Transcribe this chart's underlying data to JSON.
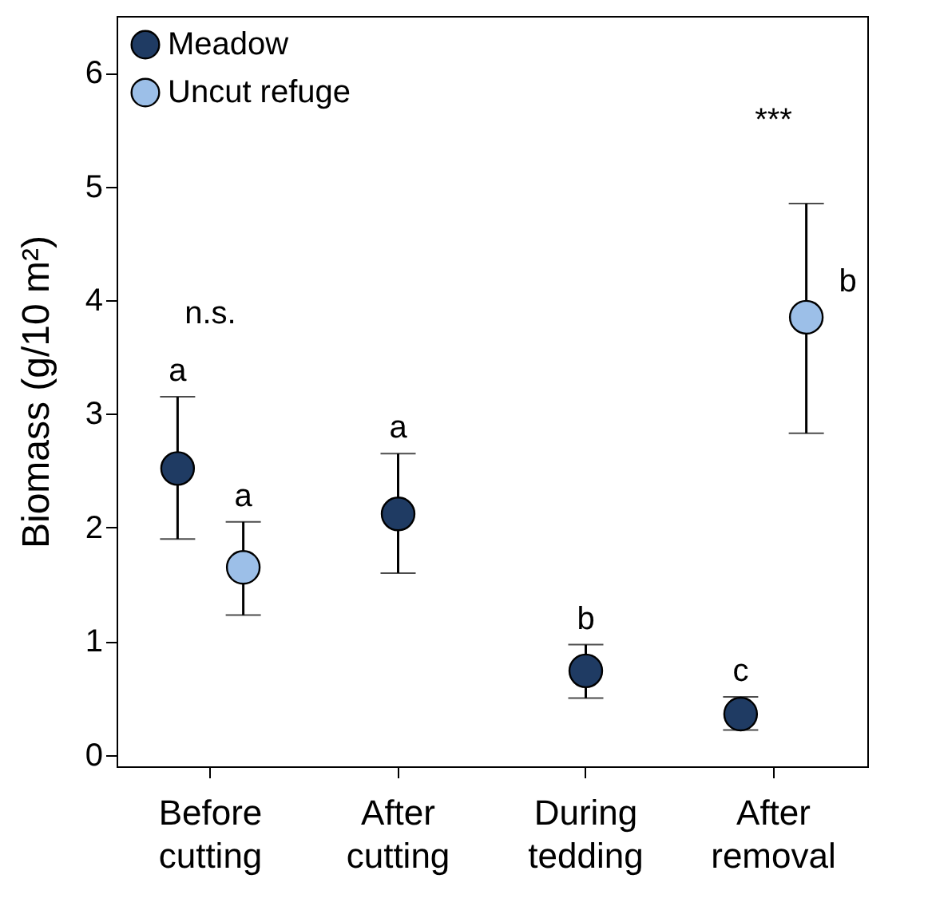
{
  "chart_data": {
    "type": "scatter",
    "ylabel": "Biomass (g/10 m²)",
    "categories": [
      "Before cutting",
      "After cutting",
      "During tedding",
      "After removal"
    ],
    "series": [
      {
        "name": "Meadow",
        "color": "#1f3b63",
        "values": [
          2.52,
          2.12,
          0.74,
          0.36
        ],
        "errors": [
          [
            1.9,
            3.15
          ],
          [
            1.6,
            2.65
          ],
          [
            0.5,
            0.97
          ],
          [
            0.22,
            0.51
          ]
        ],
        "value_labels": [
          "a",
          "a",
          "b",
          "c"
        ]
      },
      {
        "name": "Uncut refuge",
        "color": "#9cbfe8",
        "values": [
          1.65,
          null,
          null,
          3.85
        ],
        "errors": [
          [
            1.23,
            2.05
          ],
          null,
          null,
          [
            2.83,
            4.85
          ]
        ],
        "value_labels": [
          "a",
          null,
          null,
          "b"
        ]
      }
    ],
    "ylim": [
      -0.1,
      6.5
    ],
    "yticks": [
      0,
      1,
      2,
      3,
      4,
      5,
      6
    ],
    "grid": false,
    "legend": "top left",
    "marker": "circle",
    "annotations": [
      "n.s.",
      "***"
    ]
  }
}
